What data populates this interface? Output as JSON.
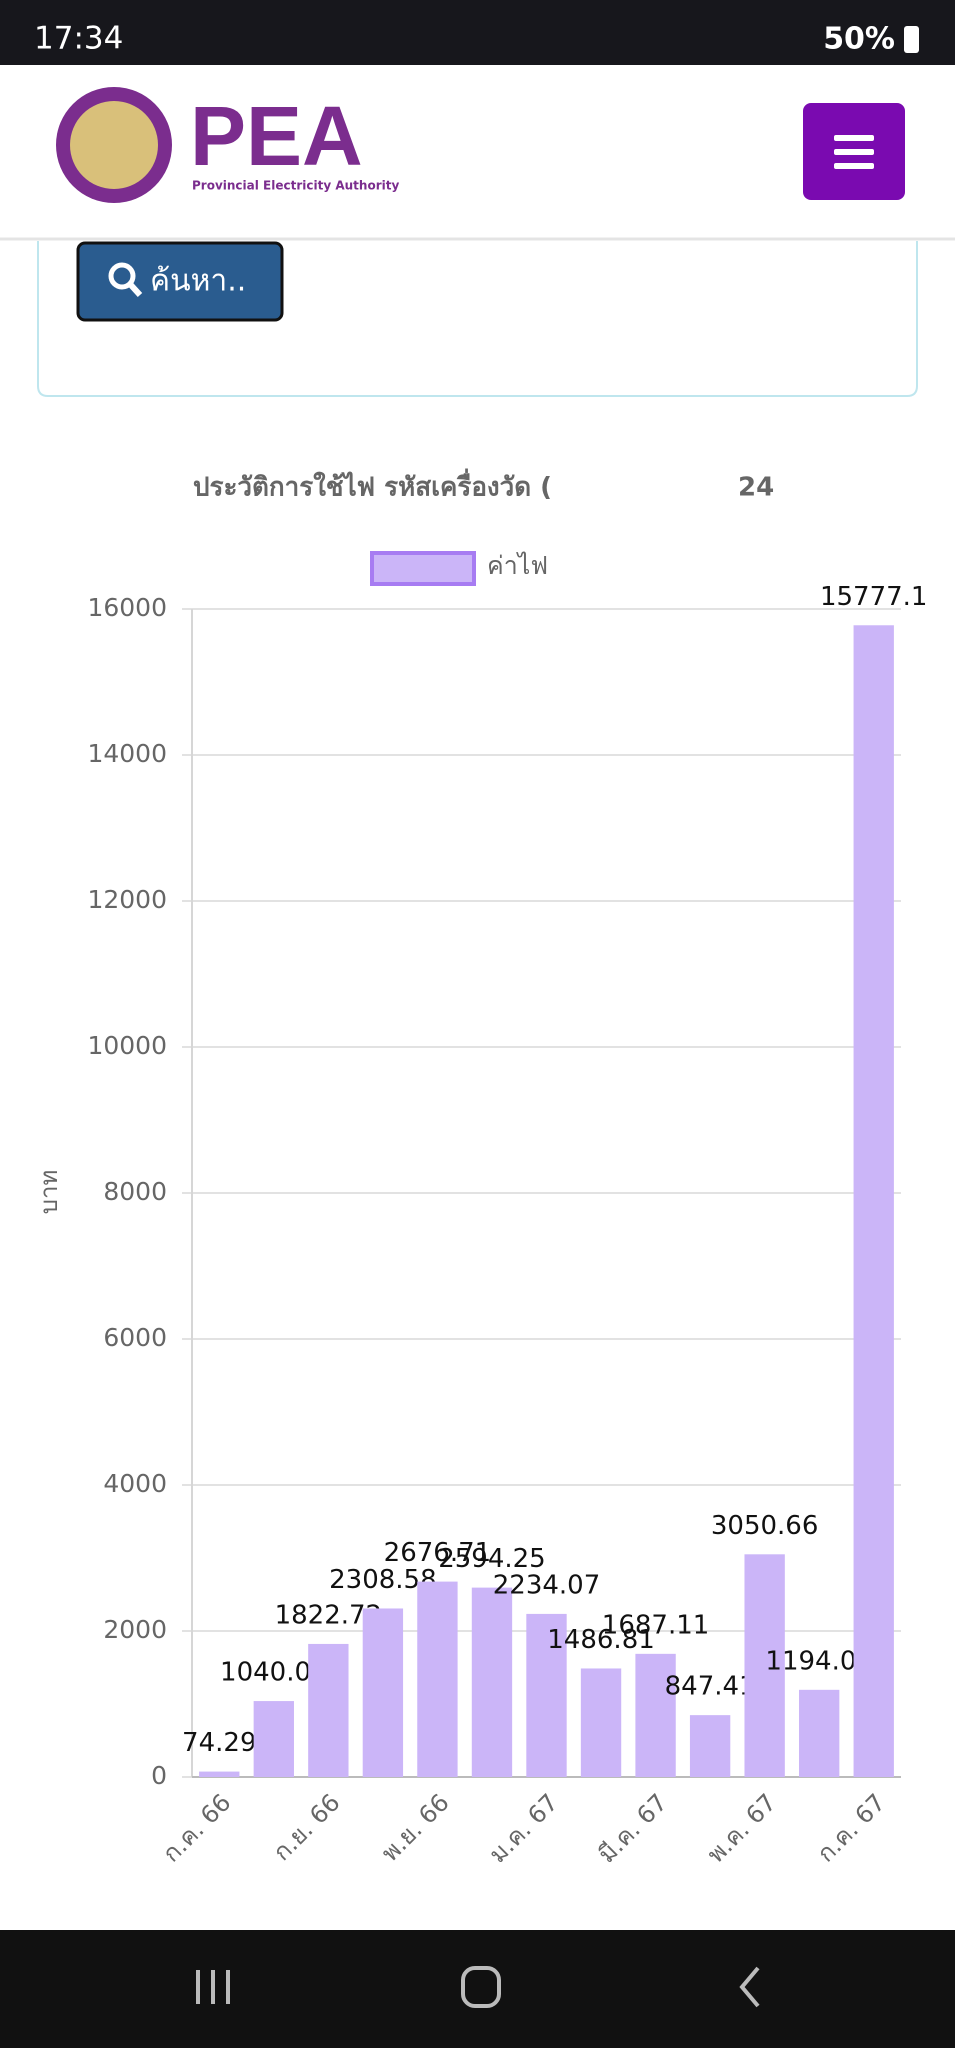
{
  "status_bar": {
    "time": "17:34",
    "battery": "50%"
  },
  "header": {
    "logo_text": "PEA",
    "logo_subtitle": "Provincial Electricity Authority"
  },
  "search_button": "ค้นหา..",
  "chart_data": {
    "type": "bar",
    "title": "ประวัติการใช้ไฟ รหัสเครื่องวัด (",
    "title_end": "24",
    "y_label": "บาท",
    "categories": [
      "ก.ค. 66",
      null,
      "ก.ย. 66",
      null,
      "พ.ย. 66",
      null,
      "ม.ค. 67",
      null,
      "มี.ค. 67",
      null,
      "พ.ค. 67",
      null,
      "ก.ค. 67"
    ],
    "series": [
      {
        "name": "ค่าไฟ",
        "color": "#cbb5f8",
        "border_color": "#a77cf2",
        "values": [
          74.29,
          1040.06,
          1822.72,
          2308.58,
          2676.71,
          2594.25,
          2234.07,
          1486.81,
          1687.11,
          847.41,
          3050.66,
          1194.08,
          15777.1
        ]
      }
    ],
    "ylim": [
      0,
      16000
    ],
    "yticks": [
      0,
      2000,
      4000,
      6000,
      8000,
      10000,
      12000,
      14000,
      16000
    ],
    "grid": true,
    "legend": "top",
    "data_labels": true
  }
}
